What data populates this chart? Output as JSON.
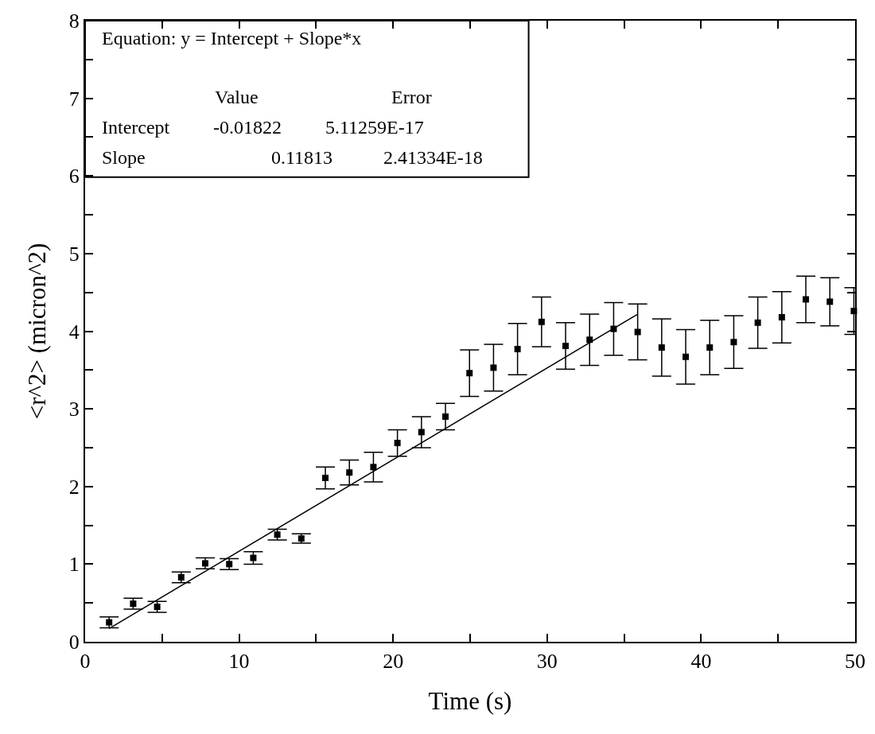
{
  "chart_data": {
    "type": "scatter",
    "xlabel": "Time (s)",
    "ylabel": "<r^2> (micron^2)",
    "xlim": [
      0,
      50
    ],
    "ylim": [
      0,
      8
    ],
    "xticks": [
      0,
      {
        "value": 5,
        "label": null
      },
      10,
      {
        "value": 15,
        "label": null
      },
      20,
      {
        "value": 25,
        "label": null
      },
      30,
      {
        "value": 35,
        "label": null
      },
      40,
      {
        "value": 45,
        "label": null
      },
      50
    ],
    "yticks": [
      0,
      {
        "value": 0.5,
        "label": null
      },
      1,
      {
        "value": 1.5,
        "label": null
      },
      2,
      {
        "value": 2.5,
        "label": null
      },
      3,
      {
        "value": 3.5,
        "label": null
      },
      4,
      {
        "value": 4.5,
        "label": null
      },
      5,
      {
        "value": 5.5,
        "label": null
      },
      6,
      {
        "value": 6.5,
        "label": null
      },
      7,
      {
        "value": 7.5,
        "label": null
      },
      8
    ],
    "marker": "square",
    "series": [
      {
        "color": "#000000",
        "x": [
          1.56,
          3.12,
          4.68,
          6.24,
          7.8,
          9.36,
          10.92,
          12.48,
          14.04,
          15.6,
          17.16,
          18.72,
          20.28,
          21.84,
          23.4,
          24.96,
          26.52,
          28.08,
          29.64,
          31.2,
          32.76,
          34.32,
          35.88,
          37.44,
          39.0,
          40.56,
          42.12,
          43.68,
          45.24,
          46.8,
          48.36,
          49.92
        ],
        "values": [
          0.25,
          0.49,
          0.45,
          0.83,
          1.01,
          1.0,
          1.08,
          1.38,
          1.33,
          2.11,
          2.18,
          2.25,
          2.56,
          2.7,
          2.9,
          3.46,
          3.53,
          3.77,
          4.12,
          3.81,
          3.89,
          4.03,
          3.99,
          3.79,
          3.67,
          3.79,
          3.86,
          4.11,
          4.18,
          4.41,
          4.38,
          4.26
        ],
        "errors": [
          0.07,
          0.07,
          0.07,
          0.07,
          0.07,
          0.07,
          0.08,
          0.07,
          0.06,
          0.14,
          0.16,
          0.19,
          0.17,
          0.2,
          0.17,
          0.3,
          0.3,
          0.33,
          0.32,
          0.3,
          0.33,
          0.34,
          0.36,
          0.37,
          0.35,
          0.35,
          0.34,
          0.33,
          0.33,
          0.3,
          0.31,
          0.3
        ]
      },
      {
        "type": "line",
        "color": "#000000",
        "marker": "none",
        "x": [
          1.56,
          35.88
        ],
        "values": [
          0.17,
          4.22
        ]
      }
    ],
    "annotations": [
      "Equation: y = Intercept + Slope*x",
      "Value",
      "Error",
      "Intercept",
      "-0.01822",
      "5.11259E-17",
      "Slope",
      "0.11813",
      "2.41334E-18"
    ]
  }
}
